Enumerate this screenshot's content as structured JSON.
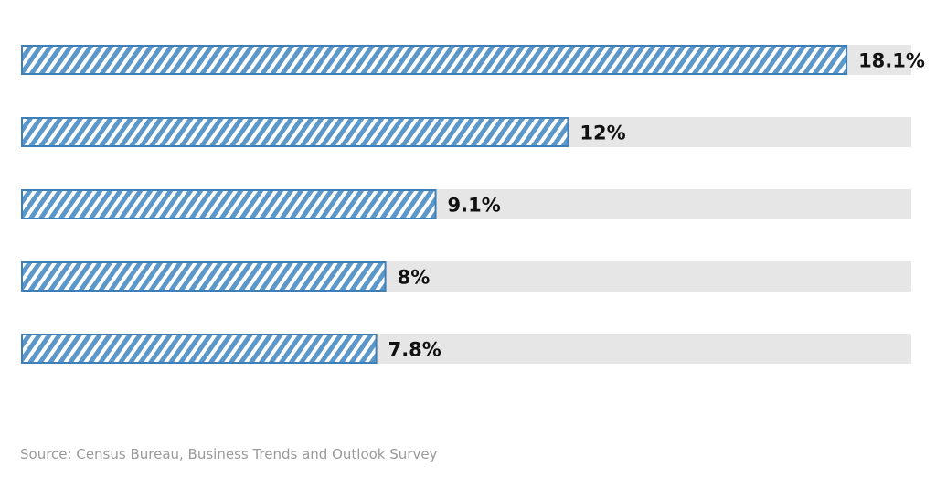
{
  "chart_data": {
    "type": "bar",
    "orientation": "horizontal",
    "categories": [
      "",
      "",
      "",
      "",
      ""
    ],
    "values": [
      18.1,
      12,
      9.1,
      8,
      7.8
    ],
    "value_labels": [
      "18.1%",
      "12%",
      "9.1%",
      "8%",
      "7.8%"
    ],
    "xlim": [
      0,
      19.5
    ],
    "grid": false,
    "legend": "none",
    "title": "",
    "xlabel": "",
    "ylabel": ""
  },
  "source": "Source: Census Bureau, Business Trends and Outlook Survey",
  "colors": {
    "bar_fill": "#5b97c9",
    "bar_stroke": "#3f7fb8",
    "track": "#e6e6e6",
    "label": "#111111",
    "source": "#9a9a9a"
  }
}
